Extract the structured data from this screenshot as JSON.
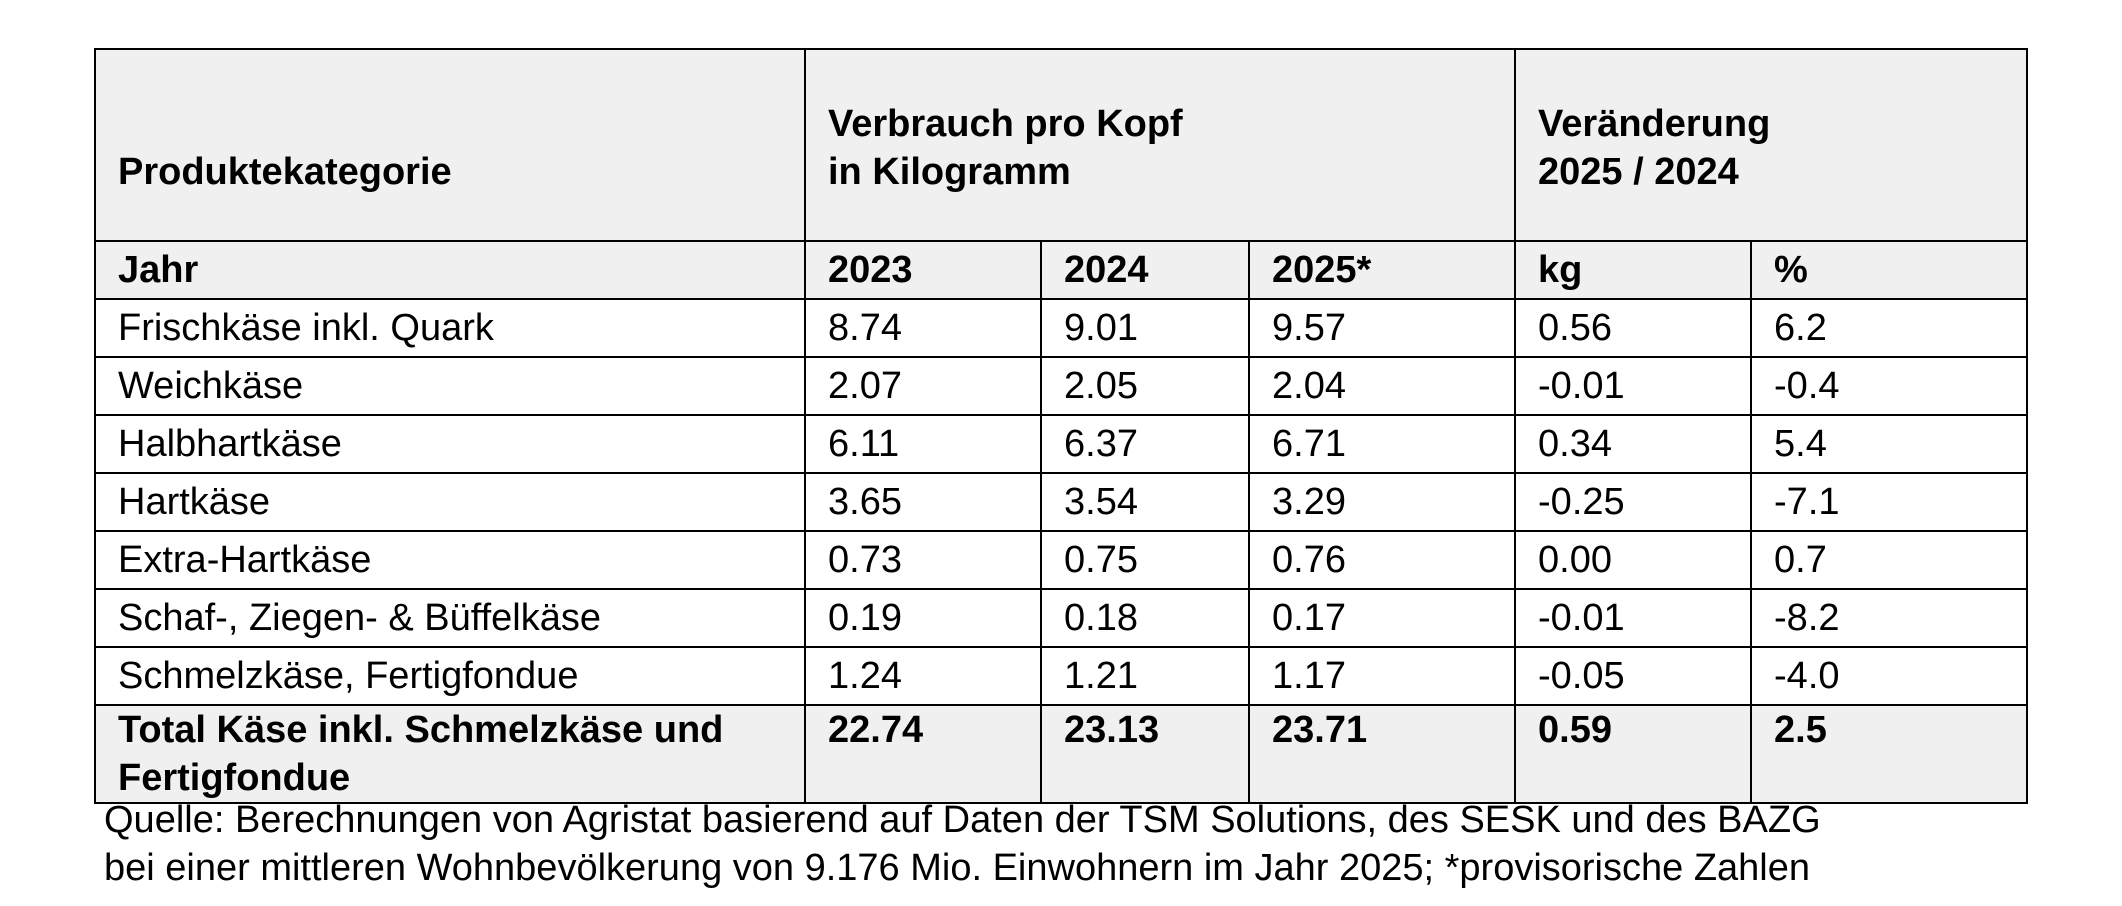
{
  "table": {
    "header": {
      "category_label": "Produktekategorie",
      "consumption_line1": "Verbrauch pro Kopf",
      "consumption_line2": "in Kilogramm",
      "change_line1": "Veränderung",
      "change_line2": "2025 / 2024"
    },
    "subheader": {
      "year_label": "Jahr",
      "col_2023": "2023",
      "col_2024": "2024",
      "col_2025": "2025*",
      "col_kg": "kg",
      "col_pct": "%"
    },
    "rows": [
      {
        "category": "Frischkäse inkl. Quark",
        "y2023": "8.74",
        "y2024": "9.01",
        "y2025": "9.57",
        "kg": "0.56",
        "pct": "6.2"
      },
      {
        "category": "Weichkäse",
        "y2023": "2.07",
        "y2024": "2.05",
        "y2025": "2.04",
        "kg": "-0.01",
        "pct": "-0.4"
      },
      {
        "category": "Halbhartkäse",
        "y2023": "6.11",
        "y2024": "6.37",
        "y2025": "6.71",
        "kg": "0.34",
        "pct": "5.4"
      },
      {
        "category": "Hartkäse",
        "y2023": "3.65",
        "y2024": "3.54",
        "y2025": "3.29",
        "kg": "-0.25",
        "pct": "-7.1"
      },
      {
        "category": "Extra-Hartkäse",
        "y2023": "0.73",
        "y2024": "0.75",
        "y2025": "0.76",
        "kg": "0.00",
        "pct": "0.7"
      },
      {
        "category": "Schaf-, Ziegen- & Büffelkäse",
        "y2023": "0.19",
        "y2024": "0.18",
        "y2025": "0.17",
        "kg": "-0.01",
        "pct": "-8.2"
      },
      {
        "category": "Schmelzkäse, Fertigfondue",
        "y2023": "1.24",
        "y2024": "1.21",
        "y2025": "1.17",
        "kg": "-0.05",
        "pct": "-4.0"
      }
    ],
    "total": {
      "category": "Total Käse inkl. Schmelzkäse und Fertigfondue",
      "y2023": "22.74",
      "y2024": "23.13",
      "y2025": "23.71",
      "kg": "0.59",
      "pct": "2.5"
    }
  },
  "source": {
    "line1": "Quelle: Berechnungen von Agristat basierend auf Daten der TSM Solutions, des SESK und des BAZG",
    "line2": "bei einer mittleren Wohnbevölkerung von 9.176 Mio. Einwohnern im Jahr 2025; *provisorische Zahlen"
  },
  "colors": {
    "header_background": "#f0f0f0",
    "border": "#000000",
    "text": "#000000"
  }
}
